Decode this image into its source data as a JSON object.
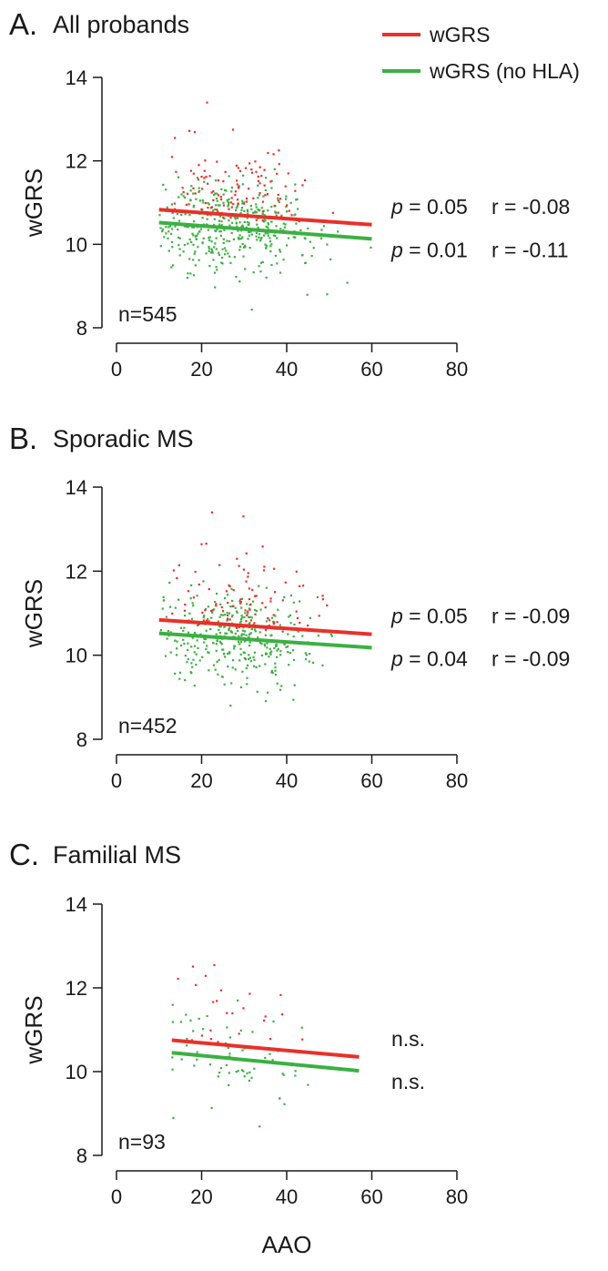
{
  "colors": {
    "wgrs": "#e8312a",
    "wgrs_no_hla": "#3cb043",
    "axis": "#1a1a1a"
  },
  "legend": [
    {
      "label": "wGRS",
      "color": "#e8312a"
    },
    {
      "label": "wGRS (no HLA)",
      "color": "#3cb043"
    }
  ],
  "shared_xlabel": "AAO",
  "chart_data": [
    {
      "type": "scatter",
      "panel": "A.",
      "title": "All probands",
      "ylabel": "wGRS",
      "xlabel": "",
      "xlim": [
        0,
        80
      ],
      "ylim": [
        8,
        14
      ],
      "xticks": [
        "0",
        "20",
        "40",
        "60",
        "80"
      ],
      "yticks": [
        "8",
        "10",
        "12",
        "14"
      ],
      "n_label": "n=545",
      "series": [
        {
          "name": "wGRS",
          "color": "#e8312a",
          "fit": {
            "x": [
              10,
              60
            ],
            "y": [
              10.83,
              10.47
            ]
          },
          "stats": {
            "p_label": "p",
            "p_text": " = 0.05",
            "r_text": "r = -0.08"
          }
        },
        {
          "name": "wGRS (no HLA)",
          "color": "#3cb043",
          "fit": {
            "x": [
              10,
              60
            ],
            "y": [
              10.52,
              10.13
            ]
          },
          "stats": {
            "p_label": "p",
            "p_text": " = 0.01",
            "r_text": "r = -0.11"
          }
        }
      ],
      "scatter_summary": {
        "wGRS": {
          "count": 120,
          "x_range": [
            13,
            51
          ],
          "y_range": [
            10.2,
            13.4
          ]
        },
        "wGRS (no HLA)": {
          "count": 420,
          "x_range": [
            10,
            60
          ],
          "y_range": [
            8.4,
            11.8
          ]
        }
      }
    },
    {
      "type": "scatter",
      "panel": "B.",
      "title": "Sporadic MS",
      "ylabel": "wGRS",
      "xlabel": "",
      "xlim": [
        0,
        80
      ],
      "ylim": [
        8,
        14
      ],
      "xticks": [
        "0",
        "20",
        "40",
        "60",
        "80"
      ],
      "yticks": [
        "8",
        "10",
        "12",
        "14"
      ],
      "n_label": "n=452",
      "series": [
        {
          "name": "wGRS",
          "color": "#e8312a",
          "fit": {
            "x": [
              10,
              60
            ],
            "y": [
              10.84,
              10.5
            ]
          },
          "stats": {
            "p_label": "p",
            "p_text": " = 0.05",
            "r_text": "r = -0.09"
          }
        },
        {
          "name": "wGRS (no HLA)",
          "color": "#3cb043",
          "fit": {
            "x": [
              10,
              60
            ],
            "y": [
              10.52,
              10.18
            ]
          },
          "stats": {
            "p_label": "p",
            "p_text": " = 0.04",
            "r_text": "r = -0.09"
          }
        }
      ],
      "scatter_summary": {
        "wGRS": {
          "count": 100,
          "x_range": [
            13,
            51
          ],
          "y_range": [
            10.2,
            13.4
          ]
        },
        "wGRS (no HLA)": {
          "count": 350,
          "x_range": [
            10,
            60
          ],
          "y_range": [
            8.4,
            11.8
          ]
        }
      }
    },
    {
      "type": "scatter",
      "panel": "C.",
      "title": "Familial MS",
      "ylabel": "wGRS",
      "xlabel": "AAO",
      "xlim": [
        0,
        80
      ],
      "ylim": [
        8,
        14
      ],
      "xticks": [
        "0",
        "20",
        "40",
        "60",
        "80"
      ],
      "yticks": [
        "8",
        "10",
        "12",
        "14"
      ],
      "n_label": "n=93",
      "series": [
        {
          "name": "wGRS",
          "color": "#e8312a",
          "fit": {
            "x": [
              13,
              57
            ],
            "y": [
              10.75,
              10.35
            ]
          },
          "stats": {
            "p_label": "",
            "p_text": "",
            "r_text": "n.s."
          }
        },
        {
          "name": "wGRS (no HLA)",
          "color": "#3cb043",
          "fit": {
            "x": [
              13,
              57
            ],
            "y": [
              10.45,
              10.02
            ]
          },
          "stats": {
            "p_label": "",
            "p_text": "",
            "r_text": "n.s."
          }
        }
      ],
      "scatter_summary": {
        "wGRS": {
          "count": 25,
          "x_range": [
            14,
            55
          ],
          "y_range": [
            10.3,
            13.4
          ]
        },
        "wGRS (no HLA)": {
          "count": 70,
          "x_range": [
            13,
            57
          ],
          "y_range": [
            8.5,
            11.7
          ]
        }
      }
    }
  ]
}
